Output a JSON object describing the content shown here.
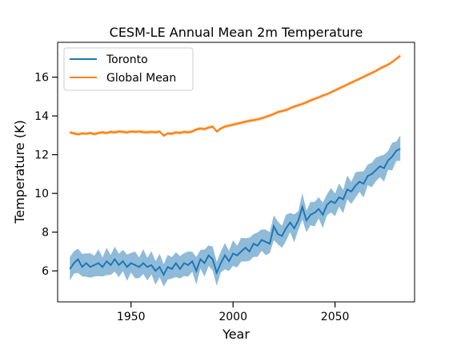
{
  "chart_data": {
    "type": "line",
    "title": "CESM-LE Annual Mean 2m Temperature",
    "xlabel": "Year",
    "ylabel": "Temperature (K)",
    "xlim": [
      1914,
      2089
    ],
    "ylim": [
      4.4,
      17.8
    ],
    "xticks": [
      1950,
      2000,
      2050
    ],
    "yticks": [
      6,
      8,
      10,
      12,
      14,
      16
    ],
    "grid": false,
    "legend_position": "top-left",
    "series": [
      {
        "name": "Toronto",
        "color": "#1f77b4",
        "band_color": "#1f77b4",
        "points": [
          [
            1920,
            6.1
          ],
          [
            1922,
            6.4
          ],
          [
            1924,
            6.6
          ],
          [
            1926,
            6.2
          ],
          [
            1928,
            6.4
          ],
          [
            1930,
            6.2
          ],
          [
            1932,
            6.3
          ],
          [
            1934,
            6.4
          ],
          [
            1936,
            6.2
          ],
          [
            1938,
            6.5
          ],
          [
            1940,
            6.3
          ],
          [
            1942,
            6.6
          ],
          [
            1944,
            6.3
          ],
          [
            1946,
            6.5
          ],
          [
            1948,
            6.2
          ],
          [
            1950,
            6.4
          ],
          [
            1952,
            6.3
          ],
          [
            1954,
            6.2
          ],
          [
            1956,
            6.4
          ],
          [
            1958,
            6.2
          ],
          [
            1960,
            6.3
          ],
          [
            1962,
            6.0
          ],
          [
            1964,
            6.2
          ],
          [
            1966,
            5.8
          ],
          [
            1968,
            6.2
          ],
          [
            1970,
            6.1
          ],
          [
            1972,
            6.4
          ],
          [
            1974,
            6.1
          ],
          [
            1976,
            6.4
          ],
          [
            1978,
            6.3
          ],
          [
            1980,
            6.5
          ],
          [
            1982,
            6.0
          ],
          [
            1984,
            6.6
          ],
          [
            1986,
            6.4
          ],
          [
            1988,
            6.8
          ],
          [
            1990,
            6.6
          ],
          [
            1992,
            5.9
          ],
          [
            1994,
            6.4
          ],
          [
            1996,
            6.8
          ],
          [
            1998,
            6.5
          ],
          [
            2000,
            6.9
          ],
          [
            2002,
            6.8
          ],
          [
            2004,
            7.0
          ],
          [
            2006,
            7.2
          ],
          [
            2008,
            7.0
          ],
          [
            2010,
            7.4
          ],
          [
            2012,
            7.3
          ],
          [
            2014,
            7.6
          ],
          [
            2016,
            7.5
          ],
          [
            2018,
            7.4
          ],
          [
            2020,
            8.3
          ],
          [
            2022,
            7.9
          ],
          [
            2024,
            7.8
          ],
          [
            2026,
            8.2
          ],
          [
            2028,
            8.5
          ],
          [
            2030,
            8.2
          ],
          [
            2032,
            8.6
          ],
          [
            2034,
            9.3
          ],
          [
            2036,
            8.6
          ],
          [
            2038,
            8.9
          ],
          [
            2040,
            9.0
          ],
          [
            2042,
            9.2
          ],
          [
            2044,
            8.9
          ],
          [
            2046,
            9.4
          ],
          [
            2048,
            9.6
          ],
          [
            2050,
            9.5
          ],
          [
            2052,
            9.8
          ],
          [
            2054,
            9.7
          ],
          [
            2056,
            10.2
          ],
          [
            2058,
            10.1
          ],
          [
            2060,
            10.4
          ],
          [
            2062,
            10.6
          ],
          [
            2064,
            10.5
          ],
          [
            2066,
            10.9
          ],
          [
            2068,
            11.0
          ],
          [
            2070,
            11.2
          ],
          [
            2072,
            11.4
          ],
          [
            2074,
            11.3
          ],
          [
            2076,
            11.7
          ],
          [
            2078,
            11.9
          ],
          [
            2080,
            12.2
          ],
          [
            2082,
            12.3
          ]
        ],
        "band_halfwidth": 0.6
      },
      {
        "name": "Global Mean",
        "color": "#ff7f0e",
        "band_color": "#ff7f0e",
        "points": [
          [
            1920,
            13.15
          ],
          [
            1922,
            13.1
          ],
          [
            1924,
            13.05
          ],
          [
            1926,
            13.1
          ],
          [
            1928,
            13.08
          ],
          [
            1930,
            13.12
          ],
          [
            1932,
            13.06
          ],
          [
            1934,
            13.12
          ],
          [
            1936,
            13.15
          ],
          [
            1938,
            13.12
          ],
          [
            1940,
            13.18
          ],
          [
            1942,
            13.15
          ],
          [
            1944,
            13.2
          ],
          [
            1946,
            13.18
          ],
          [
            1948,
            13.15
          ],
          [
            1950,
            13.2
          ],
          [
            1952,
            13.18
          ],
          [
            1954,
            13.2
          ],
          [
            1956,
            13.16
          ],
          [
            1958,
            13.15
          ],
          [
            1960,
            13.18
          ],
          [
            1962,
            13.15
          ],
          [
            1964,
            13.2
          ],
          [
            1966,
            12.98
          ],
          [
            1968,
            13.1
          ],
          [
            1970,
            13.08
          ],
          [
            1972,
            13.15
          ],
          [
            1974,
            13.12
          ],
          [
            1976,
            13.18
          ],
          [
            1978,
            13.15
          ],
          [
            1980,
            13.2
          ],
          [
            1982,
            13.3
          ],
          [
            1984,
            13.35
          ],
          [
            1986,
            13.32
          ],
          [
            1988,
            13.4
          ],
          [
            1990,
            13.45
          ],
          [
            1992,
            13.2
          ],
          [
            1994,
            13.35
          ],
          [
            1996,
            13.45
          ],
          [
            1998,
            13.5
          ],
          [
            2000,
            13.55
          ],
          [
            2002,
            13.6
          ],
          [
            2004,
            13.65
          ],
          [
            2006,
            13.7
          ],
          [
            2008,
            13.75
          ],
          [
            2010,
            13.78
          ],
          [
            2012,
            13.82
          ],
          [
            2014,
            13.88
          ],
          [
            2016,
            13.95
          ],
          [
            2018,
            14.02
          ],
          [
            2020,
            14.1
          ],
          [
            2022,
            14.2
          ],
          [
            2024,
            14.25
          ],
          [
            2026,
            14.3
          ],
          [
            2028,
            14.4
          ],
          [
            2030,
            14.48
          ],
          [
            2032,
            14.55
          ],
          [
            2034,
            14.62
          ],
          [
            2036,
            14.7
          ],
          [
            2038,
            14.8
          ],
          [
            2040,
            14.88
          ],
          [
            2042,
            14.96
          ],
          [
            2044,
            15.05
          ],
          [
            2046,
            15.12
          ],
          [
            2048,
            15.22
          ],
          [
            2050,
            15.32
          ],
          [
            2052,
            15.42
          ],
          [
            2054,
            15.52
          ],
          [
            2056,
            15.62
          ],
          [
            2058,
            15.72
          ],
          [
            2060,
            15.82
          ],
          [
            2062,
            15.92
          ],
          [
            2064,
            16.02
          ],
          [
            2066,
            16.12
          ],
          [
            2068,
            16.22
          ],
          [
            2070,
            16.32
          ],
          [
            2072,
            16.45
          ],
          [
            2074,
            16.55
          ],
          [
            2076,
            16.65
          ],
          [
            2078,
            16.78
          ],
          [
            2080,
            16.95
          ],
          [
            2082,
            17.1
          ]
        ],
        "band_halfwidth": 0.08
      }
    ]
  }
}
